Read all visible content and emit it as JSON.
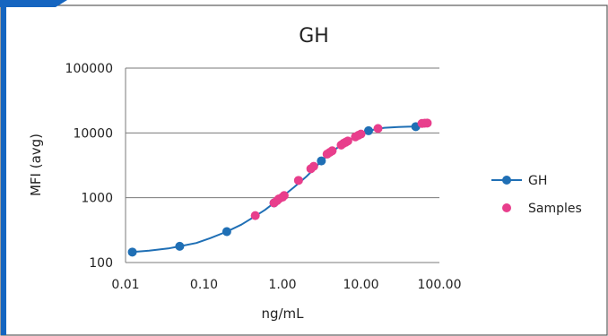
{
  "colors": {
    "border_blue": "#1565c0",
    "curve": "#1f6fb5",
    "standard_point": "#1f6fb5",
    "sample_point": "#e83e8c",
    "grid": "#7a7a7a",
    "text": "#222222"
  },
  "chart_data": {
    "type": "scatter",
    "title": "GH",
    "xlabel": "ng/mL",
    "ylabel": "MFI (avg)",
    "x_scale": "log",
    "y_scale": "log",
    "xlim": [
      0.01,
      100
    ],
    "ylim": [
      100,
      100000
    ],
    "x_ticks": [
      0.01,
      0.1,
      1,
      10,
      100
    ],
    "x_tick_labels": [
      "0.01",
      "0.10",
      "1.00",
      "10.00",
      "100.00"
    ],
    "y_ticks": [
      100,
      1000,
      10000,
      100000
    ],
    "y_tick_labels": [
      "100",
      "1000",
      "10000",
      "100000"
    ],
    "grid": "horizontal",
    "legend_position": "right",
    "series": [
      {
        "name": "GH",
        "kind": "standard-curve",
        "color": "#1f6fb5",
        "x": [
          0.0122,
          0.049,
          0.195,
          0.78,
          3.13,
          12.5,
          50.0
        ],
        "y": [
          145,
          178,
          300,
          830,
          3700,
          10800,
          12500
        ],
        "curve_x": [
          0.0122,
          0.02,
          0.035,
          0.049,
          0.08,
          0.12,
          0.195,
          0.3,
          0.45,
          0.6,
          0.78,
          1.0,
          1.4,
          2.0,
          2.5,
          3.13,
          4.0,
          5.0,
          6.5,
          8.0,
          10.0,
          12.5,
          16.0,
          20.0,
          30.0,
          40.0,
          50.0,
          55.0
        ],
        "curve_y": [
          145,
          152,
          165,
          178,
          200,
          238,
          300,
          385,
          520,
          650,
          830,
          1040,
          1450,
          2100,
          2750,
          3700,
          4750,
          5900,
          7200,
          8400,
          9600,
          10700,
          11500,
          12000,
          12350,
          12450,
          12500,
          12520
        ]
      },
      {
        "name": "Samples",
        "kind": "samples",
        "color": "#e83e8c",
        "x": [
          0.45,
          0.78,
          0.85,
          0.9,
          1.0,
          1.05,
          1.6,
          2.3,
          2.5,
          3.7,
          4.0,
          4.3,
          5.6,
          6.0,
          6.4,
          6.8,
          8.5,
          9.3,
          10.0,
          16.5,
          60.0,
          65.0,
          70.0
        ],
        "y": [
          530,
          830,
          900,
          960,
          1020,
          1080,
          1850,
          2800,
          3050,
          4700,
          5000,
          5300,
          6500,
          6900,
          7200,
          7500,
          8700,
          9200,
          9600,
          11700,
          14000,
          14100,
          14200
        ]
      }
    ]
  }
}
